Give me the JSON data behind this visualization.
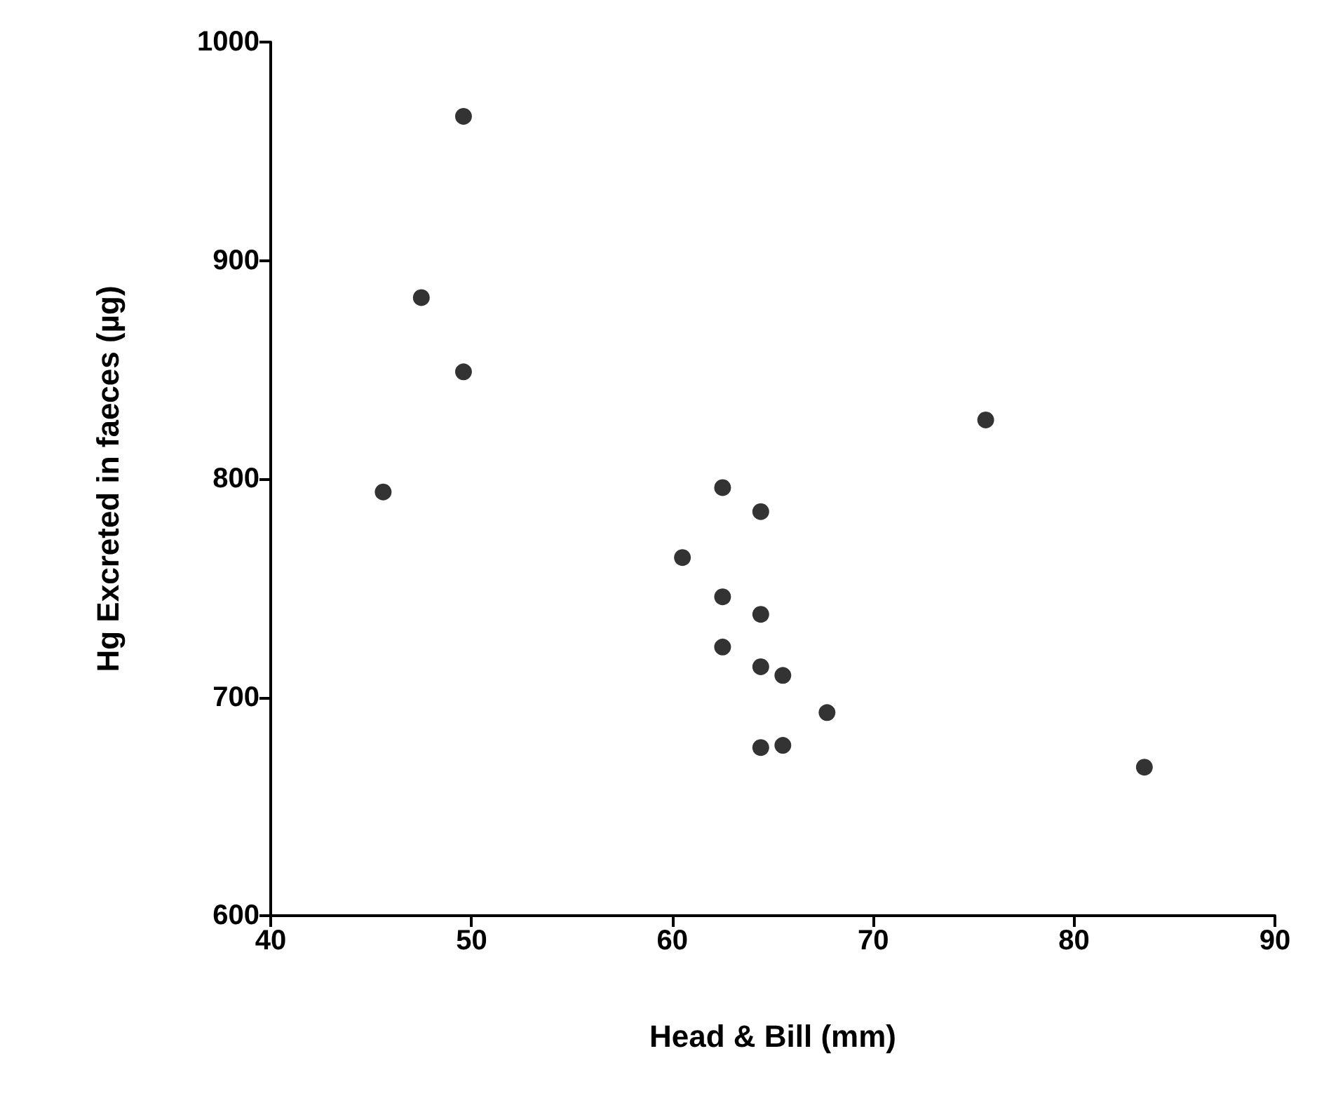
{
  "chart_data": {
    "type": "scatter",
    "xlabel": "Head & Bill (mm)",
    "ylabel": "Hg Excreted in faeces (µg)",
    "x": [
      49.6,
      47.5,
      49.6,
      45.6,
      62.5,
      64.4,
      60.5,
      62.5,
      64.4,
      62.5,
      64.4,
      65.5,
      67.7,
      64.4,
      65.5,
      75.6,
      83.5
    ],
    "values": [
      966,
      883,
      849,
      794,
      796,
      785,
      764,
      746,
      738,
      723,
      714,
      710,
      693,
      677,
      678,
      827,
      668
    ],
    "color": "#000000",
    "marker": "circle",
    "xlim": [
      40,
      90
    ],
    "xticks": [
      40,
      50,
      60,
      70,
      80,
      90
    ],
    "ylim": [
      600,
      1000
    ],
    "yticks": [
      600,
      700,
      800,
      900,
      1000
    ],
    "grid": false
  }
}
